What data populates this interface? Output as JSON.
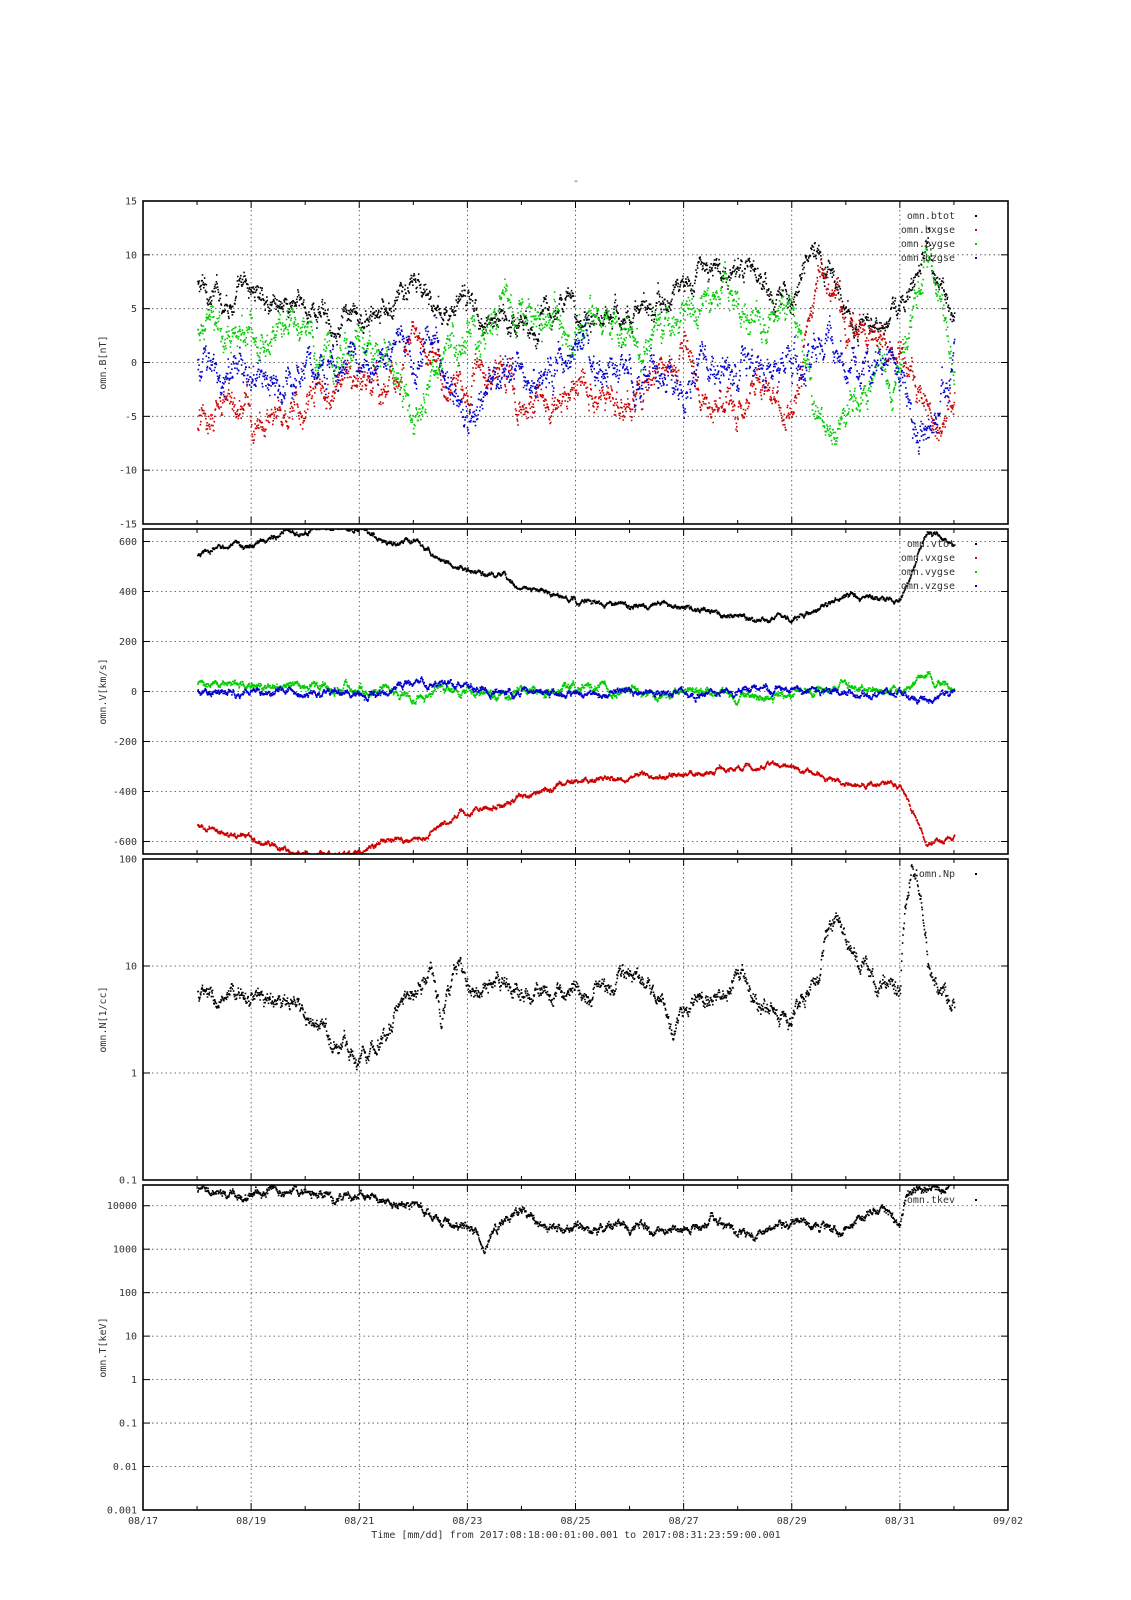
{
  "figure": {
    "title": "-",
    "xaxis": {
      "label": "Time [mm/dd]  from 2017:08:18:00:01:00.001  to  2017:08:31:23:59:00.001",
      "range_days": [
        0,
        16
      ],
      "tick_labels": [
        "08/17",
        "08/19",
        "08/21",
        "08/23",
        "08/25",
        "08/27",
        "08/29",
        "08/31",
        "09/02"
      ],
      "tick_days": [
        0,
        2,
        4,
        6,
        8,
        10,
        12,
        14,
        16
      ]
    }
  },
  "colors": {
    "black": "#000000",
    "red": "#cc0000",
    "green": "#00cc00",
    "blue": "#0000cc",
    "grid": "#444444"
  },
  "chart_data": [
    {
      "type": "scatter",
      "ylabel": "omn.B[nT]",
      "ylim": [
        -15,
        15
      ],
      "yscale": "linear",
      "grid": true,
      "legend_position": "top-right",
      "yticks": [
        -15,
        -10,
        -5,
        0,
        5,
        10,
        15
      ],
      "ytick_labels": [
        "-15",
        "-10",
        "-5",
        "0",
        "5",
        "10",
        "15"
      ],
      "series": [
        {
          "name": "omn.btot",
          "color": "black",
          "x": [
            1.0,
            1.5,
            2.0,
            2.5,
            3.0,
            3.5,
            4.0,
            4.5,
            5.0,
            5.5,
            6.0,
            6.5,
            7.0,
            7.5,
            8.0,
            8.5,
            9.0,
            9.5,
            10.0,
            10.5,
            11.0,
            11.5,
            12.0,
            12.5,
            13.0,
            13.5,
            14.0,
            14.5,
            15.0
          ],
          "y": [
            7.0,
            6.0,
            6.5,
            6.0,
            5.0,
            4.5,
            3.0,
            4.0,
            7.5,
            4.0,
            5.5,
            4.0,
            4.0,
            4.5,
            4.5,
            5.5,
            4.5,
            5.0,
            7.0,
            9.0,
            8.0,
            7.5,
            7.0,
            10.0,
            4.5,
            3.5,
            4.0,
            11.0,
            3.5
          ]
        },
        {
          "name": "omn.bxgse",
          "color": "red",
          "x": [
            1.0,
            1.5,
            2.0,
            2.5,
            3.0,
            3.5,
            4.0,
            4.5,
            5.0,
            5.5,
            6.0,
            6.5,
            7.0,
            7.5,
            8.0,
            8.5,
            9.0,
            9.5,
            10.0,
            10.5,
            11.0,
            11.5,
            12.0,
            12.5,
            13.0,
            13.5,
            14.0,
            14.5,
            15.0
          ],
          "y": [
            -6.0,
            -4.0,
            -5.0,
            -4.0,
            -3.5,
            -3.0,
            -2.5,
            -3.0,
            3.0,
            -1.0,
            -2.0,
            0.0,
            -3.0,
            -4.0,
            -3.0,
            -2.5,
            -3.5,
            -2.0,
            0.0,
            -4.0,
            -5.0,
            -4.0,
            -6.0,
            10.0,
            3.0,
            2.0,
            1.0,
            -5.0,
            -3.5
          ]
        },
        {
          "name": "omn.bygse",
          "color": "green",
          "x": [
            1.0,
            1.5,
            2.0,
            2.5,
            3.0,
            3.5,
            4.0,
            4.5,
            5.0,
            5.5,
            6.0,
            6.5,
            7.0,
            7.5,
            8.0,
            8.5,
            9.0,
            9.5,
            10.0,
            10.5,
            11.0,
            11.5,
            12.0,
            12.5,
            13.0,
            13.5,
            14.0,
            14.5,
            15.0
          ],
          "y": [
            3.0,
            2.0,
            4.0,
            3.0,
            2.0,
            1.0,
            1.0,
            0.0,
            -6.0,
            0.0,
            3.0,
            4.0,
            4.0,
            3.0,
            3.5,
            4.0,
            3.0,
            2.0,
            5.0,
            7.0,
            6.0,
            5.0,
            5.0,
            -6.0,
            -2.0,
            -1.0,
            -2.0,
            10.0,
            0.0
          ]
        },
        {
          "name": "omn.bzgse",
          "color": "blue",
          "x": [
            1.0,
            1.5,
            2.0,
            2.5,
            3.0,
            3.5,
            4.0,
            4.5,
            5.0,
            5.5,
            6.0,
            6.5,
            7.0,
            7.5,
            8.0,
            8.5,
            9.0,
            9.5,
            10.0,
            10.5,
            11.0,
            11.5,
            12.0,
            12.5,
            13.0,
            13.5,
            14.0,
            14.5,
            15.0
          ],
          "y": [
            0.0,
            -2.0,
            -1.0,
            -3.0,
            0.0,
            -1.0,
            0.0,
            1.0,
            0.0,
            1.0,
            -5.0,
            -2.0,
            0.0,
            -1.0,
            1.0,
            0.0,
            -1.0,
            1.0,
            -2.0,
            0.0,
            -1.0,
            0.0,
            0.0,
            2.0,
            0.0,
            1.0,
            0.0,
            -8.0,
            0.0
          ]
        }
      ]
    },
    {
      "type": "scatter",
      "ylabel": "omn.V[km/s]",
      "ylim": [
        -650,
        650
      ],
      "yscale": "linear",
      "grid": true,
      "legend_position": "top-right",
      "yticks": [
        -600,
        -400,
        -200,
        0,
        200,
        400,
        600
      ],
      "ytick_labels": [
        "-600",
        "-400",
        "-200",
        "0",
        "200",
        "400",
        "600"
      ],
      "series": [
        {
          "name": "omn.vtot",
          "color": "black",
          "x": [
            1.0,
            1.5,
            2.0,
            2.5,
            3.0,
            3.5,
            4.0,
            4.5,
            5.0,
            5.5,
            6.0,
            6.5,
            7.0,
            7.5,
            8.0,
            8.5,
            9.0,
            9.5,
            10.0,
            10.5,
            11.0,
            11.5,
            12.0,
            12.5,
            13.0,
            13.5,
            14.0,
            14.5,
            15.0
          ],
          "y": [
            540,
            580,
            580,
            630,
            650,
            650,
            650,
            590,
            600,
            530,
            480,
            460,
            420,
            390,
            360,
            350,
            340,
            340,
            330,
            320,
            310,
            290,
            300,
            330,
            380,
            370,
            370,
            640,
            580
          ]
        },
        {
          "name": "omn.vxgse",
          "color": "red",
          "x": [
            1.0,
            1.5,
            2.0,
            2.5,
            3.0,
            3.5,
            4.0,
            4.5,
            5.0,
            5.5,
            6.0,
            6.5,
            7.0,
            7.5,
            8.0,
            8.5,
            9.0,
            9.5,
            10.0,
            10.5,
            11.0,
            11.5,
            12.0,
            12.5,
            13.0,
            13.5,
            14.0,
            14.5,
            15.0
          ],
          "y": [
            -540,
            -580,
            -580,
            -630,
            -650,
            -650,
            -650,
            -590,
            -600,
            -530,
            -480,
            -460,
            -420,
            -390,
            -360,
            -350,
            -340,
            -340,
            -330,
            -320,
            -310,
            -290,
            -300,
            -330,
            -380,
            -370,
            -370,
            -620,
            -570
          ]
        },
        {
          "name": "omn.vygse",
          "color": "green",
          "x": [
            1.0,
            1.5,
            2.0,
            2.5,
            3.0,
            3.5,
            4.0,
            4.5,
            5.0,
            5.5,
            6.0,
            6.5,
            7.0,
            7.5,
            8.0,
            8.5,
            9.0,
            9.5,
            10.0,
            10.5,
            11.0,
            11.5,
            12.0,
            12.5,
            13.0,
            13.5,
            14.0,
            14.5,
            15.0
          ],
          "y": [
            30,
            20,
            25,
            20,
            20,
            15,
            10,
            10,
            -30,
            5,
            0,
            -10,
            0,
            10,
            10,
            5,
            0,
            -20,
            10,
            -10,
            -20,
            -30,
            -10,
            10,
            20,
            0,
            0,
            70,
            0
          ]
        },
        {
          "name": "omn.vzgse",
          "color": "blue",
          "x": [
            1.0,
            1.5,
            2.0,
            2.5,
            3.0,
            3.5,
            4.0,
            4.5,
            5.0,
            5.5,
            6.0,
            6.5,
            7.0,
            7.5,
            8.0,
            8.5,
            9.0,
            9.5,
            10.0,
            10.5,
            11.0,
            11.5,
            12.0,
            12.5,
            13.0,
            13.5,
            14.0,
            14.5,
            15.0
          ],
          "y": [
            0,
            -10,
            0,
            -15,
            -10,
            -5,
            -5,
            5,
            30,
            20,
            20,
            0,
            -10,
            -10,
            -10,
            -5,
            -10,
            -10,
            -5,
            -10,
            0,
            5,
            10,
            -5,
            -5,
            0,
            -10,
            -40,
            0
          ]
        }
      ]
    },
    {
      "type": "scatter",
      "ylabel": "omn.N[1/cc]",
      "ylim": [
        0.1,
        100
      ],
      "yscale": "log",
      "grid": true,
      "legend_position": "top-right",
      "yticks": [
        0.1,
        1,
        10,
        100
      ],
      "ytick_labels": [
        "0.1",
        "1",
        "10",
        "100"
      ],
      "series": [
        {
          "name": "omn.Np",
          "color": "black",
          "x": [
            1.0,
            1.5,
            2.0,
            2.5,
            3.0,
            3.5,
            4.0,
            4.5,
            5.0,
            5.3,
            5.5,
            5.8,
            6.0,
            6.5,
            7.0,
            7.5,
            8.0,
            8.5,
            9.0,
            9.5,
            9.8,
            10.0,
            10.5,
            11.0,
            11.5,
            12.0,
            12.5,
            12.8,
            13.0,
            13.5,
            14.0,
            14.2,
            14.5,
            15.0
          ],
          "y": [
            5.5,
            4.0,
            5.5,
            4.5,
            3.0,
            2.0,
            1.5,
            2.5,
            6.0,
            10.0,
            2.5,
            10.0,
            6.0,
            5.5,
            6.0,
            5.5,
            5.5,
            6.0,
            8.0,
            6.0,
            2.0,
            4.0,
            5.0,
            7.0,
            4.0,
            3.5,
            8.0,
            30.0,
            15.0,
            6.5,
            6.5,
            80.0,
            10.0,
            3.5
          ]
        }
      ]
    },
    {
      "type": "scatter",
      "ylabel": "omn.T[keV]",
      "ylim": [
        0.001,
        30000
      ],
      "yscale": "log",
      "grid": true,
      "legend_position": "top-right",
      "yticks": [
        0.001,
        0.01,
        0.1,
        1,
        10,
        100,
        1000,
        10000
      ],
      "ytick_labels": [
        "0.001",
        "0.01",
        "0.1",
        "1",
        "10",
        "100",
        "1000",
        "10000"
      ],
      "series": [
        {
          "name": "omn.tkev",
          "color": "black",
          "x": [
            1.0,
            1.5,
            2.0,
            2.5,
            3.0,
            3.5,
            4.0,
            4.5,
            5.0,
            5.3,
            5.5,
            6.0,
            6.3,
            6.5,
            7.0,
            7.5,
            8.0,
            8.5,
            9.0,
            9.5,
            10.0,
            10.5,
            11.0,
            11.5,
            12.0,
            12.5,
            13.0,
            13.5,
            14.0,
            14.3,
            14.5,
            15.0
          ],
          "y": [
            20000,
            15000,
            20000,
            25000,
            20000,
            15000,
            15000,
            10000,
            12000,
            5000,
            4000,
            3500,
            1000,
            3000,
            7000,
            4000,
            3000,
            3000,
            3000,
            2500,
            3000,
            5000,
            2500,
            2500,
            5000,
            3000,
            2500,
            8000,
            3000,
            30000,
            25000,
            18000
          ]
        }
      ]
    }
  ]
}
